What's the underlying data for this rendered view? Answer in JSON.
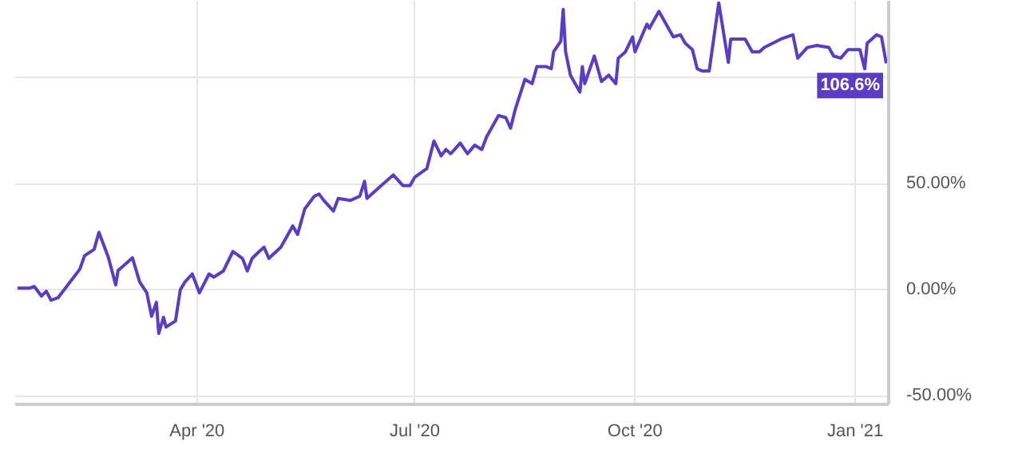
{
  "chart_data": {
    "type": "line",
    "x": [
      "2020-01-17",
      "2020-01-22",
      "2020-01-24",
      "2020-01-27",
      "2020-01-29",
      "2020-01-31",
      "2020-02-03",
      "2020-02-07",
      "2020-02-12",
      "2020-02-14",
      "2020-02-18",
      "2020-02-20",
      "2020-02-24",
      "2020-02-27",
      "2020-02-28",
      "2020-03-05",
      "2020-03-08",
      "2020-03-11",
      "2020-03-13",
      "2020-03-15",
      "2020-03-16",
      "2020-03-18",
      "2020-03-19",
      "2020-03-23",
      "2020-03-25",
      "2020-03-27",
      "2020-03-30",
      "2020-04-02",
      "2020-04-06",
      "2020-04-08",
      "2020-04-12",
      "2020-04-16",
      "2020-04-20",
      "2020-04-22",
      "2020-04-24",
      "2020-04-27",
      "2020-04-29",
      "2020-05-01",
      "2020-05-06",
      "2020-05-11",
      "2020-05-13",
      "2020-05-16",
      "2020-05-20",
      "2020-05-22",
      "2020-05-24",
      "2020-05-28",
      "2020-05-30",
      "2020-06-04",
      "2020-06-08",
      "2020-06-10",
      "2020-06-11",
      "2020-06-16",
      "2020-06-22",
      "2020-06-26",
      "2020-06-29",
      "2020-07-01",
      "2020-07-06",
      "2020-07-09",
      "2020-07-12",
      "2020-07-14",
      "2020-07-16",
      "2020-07-20",
      "2020-07-23",
      "2020-07-26",
      "2020-07-29",
      "2020-07-31",
      "2020-08-05",
      "2020-08-08",
      "2020-08-10",
      "2020-08-12",
      "2020-08-16",
      "2020-08-19",
      "2020-08-21",
      "2020-08-25",
      "2020-08-27",
      "2020-08-28",
      "2020-08-31",
      "2020-09-01",
      "2020-09-02",
      "2020-09-04",
      "2020-09-08",
      "2020-09-09",
      "2020-09-10",
      "2020-09-14",
      "2020-09-17",
      "2020-09-20",
      "2020-09-23",
      "2020-09-24",
      "2020-09-27",
      "2020-09-30",
      "2020-10-01",
      "2020-10-06",
      "2020-10-07",
      "2020-10-11",
      "2020-10-17",
      "2020-10-20",
      "2020-10-22",
      "2020-10-25",
      "2020-10-27",
      "2020-10-29",
      "2020-11-01",
      "2020-11-05",
      "2020-11-09",
      "2020-11-10",
      "2020-11-16",
      "2020-11-19",
      "2020-11-22",
      "2020-11-24",
      "2020-12-01",
      "2020-12-06",
      "2020-12-08",
      "2020-12-12",
      "2020-12-16",
      "2020-12-21",
      "2020-12-23",
      "2020-12-26",
      "2020-12-29",
      "2021-01-03",
      "2021-01-05",
      "2021-01-06",
      "2021-01-10",
      "2021-01-12",
      "2021-01-14"
    ],
    "series": [
      {
        "color": "#5b3cc4",
        "values": [
          0.7,
          0.7,
          1.5,
          -3,
          -0.7,
          -5,
          -3.7,
          2.2,
          9.6,
          16,
          19,
          27,
          15,
          2.2,
          9,
          15,
          3.7,
          -1.5,
          -12.5,
          -6,
          -20.6,
          -13,
          -17.6,
          -14.7,
          0,
          3.7,
          7.4,
          -1.5,
          7.4,
          5.9,
          8.8,
          18,
          14.7,
          8.8,
          14.7,
          18,
          20,
          14.7,
          20,
          30,
          26,
          38,
          44,
          45,
          42,
          37,
          43,
          42,
          44,
          51,
          43,
          48,
          54,
          49,
          49,
          53,
          57,
          70,
          63,
          66,
          64,
          69,
          64,
          68,
          66,
          72,
          82,
          81,
          76,
          85,
          99,
          97,
          105,
          105,
          104,
          112,
          117,
          132,
          112,
          101,
          93,
          105,
          97,
          110,
          98,
          101,
          97,
          109,
          112,
          119,
          112,
          125,
          123,
          131,
          119,
          120,
          116,
          113,
          104,
          103,
          103,
          135,
          107,
          118,
          118,
          112,
          112,
          114,
          118,
          120,
          109,
          114,
          115,
          114,
          110,
          109,
          113,
          113,
          104,
          116,
          120,
          119,
          106.6
        ]
      }
    ],
    "xlim": [
      "2020-01-16",
      "2021-01-15"
    ],
    "xticks": [
      {
        "value": "2020-04-01",
        "label": "Apr '20"
      },
      {
        "value": "2020-07-01",
        "label": "Jul '20"
      },
      {
        "value": "2020-10-01",
        "label": "Oct '20"
      },
      {
        "value": "2021-01-01",
        "label": "Jan '21"
      }
    ],
    "ylim": [
      -54,
      136
    ],
    "yticks": [
      {
        "value": -50,
        "label": "-50.00%"
      },
      {
        "value": 0,
        "label": "0.00%"
      },
      {
        "value": 50,
        "label": "50.00%"
      },
      {
        "value": 100,
        "label": null
      }
    ],
    "annotations": [
      {
        "text": "106.6%",
        "x": "2021-01-14",
        "y": 106.6
      }
    ],
    "grid": true,
    "marker": "none",
    "line_style": "solid"
  }
}
